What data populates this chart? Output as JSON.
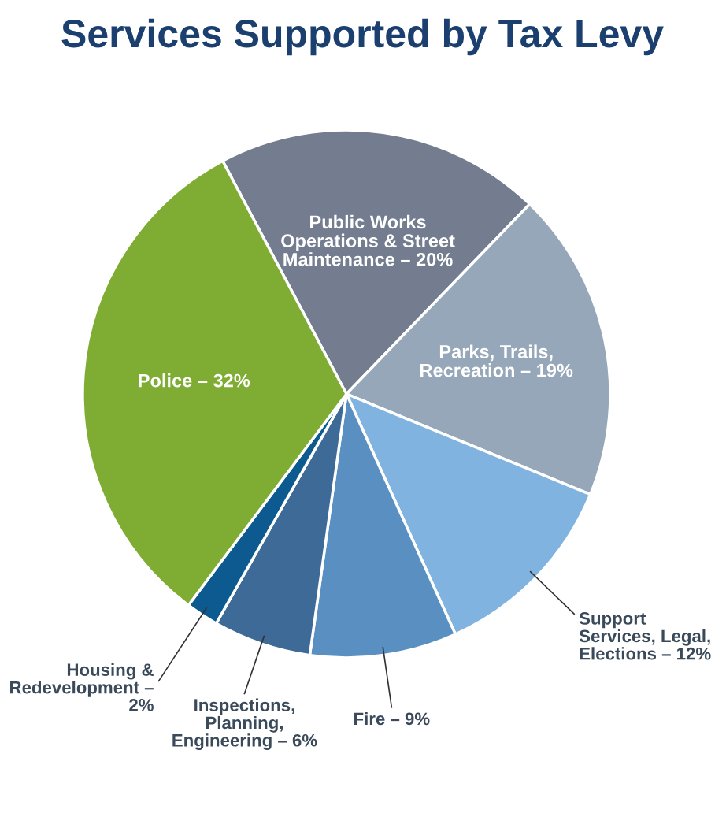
{
  "chart_data": {
    "type": "pie",
    "title": "Services Supported by Tax Levy",
    "categories": [
      "Public Works\nOperations & Street\nMaintenance – 20%",
      "Parks, Trails,\nRecreation – 19%",
      "Support\nServices, Legal,\nElections – 12%",
      "Fire – 9%",
      "Inspections,\nPlanning,\nEngineering – 6%",
      "Housing &\nRedevelopment –\n2%",
      "Police – 32%"
    ],
    "values": [
      20,
      19,
      12,
      9,
      6,
      2,
      32
    ],
    "colors": [
      "#737d8f",
      "#95a7b8",
      "#80b3df",
      "#5a8fc1",
      "#3d6a96",
      "#0c5a8f",
      "#7fac32"
    ]
  }
}
